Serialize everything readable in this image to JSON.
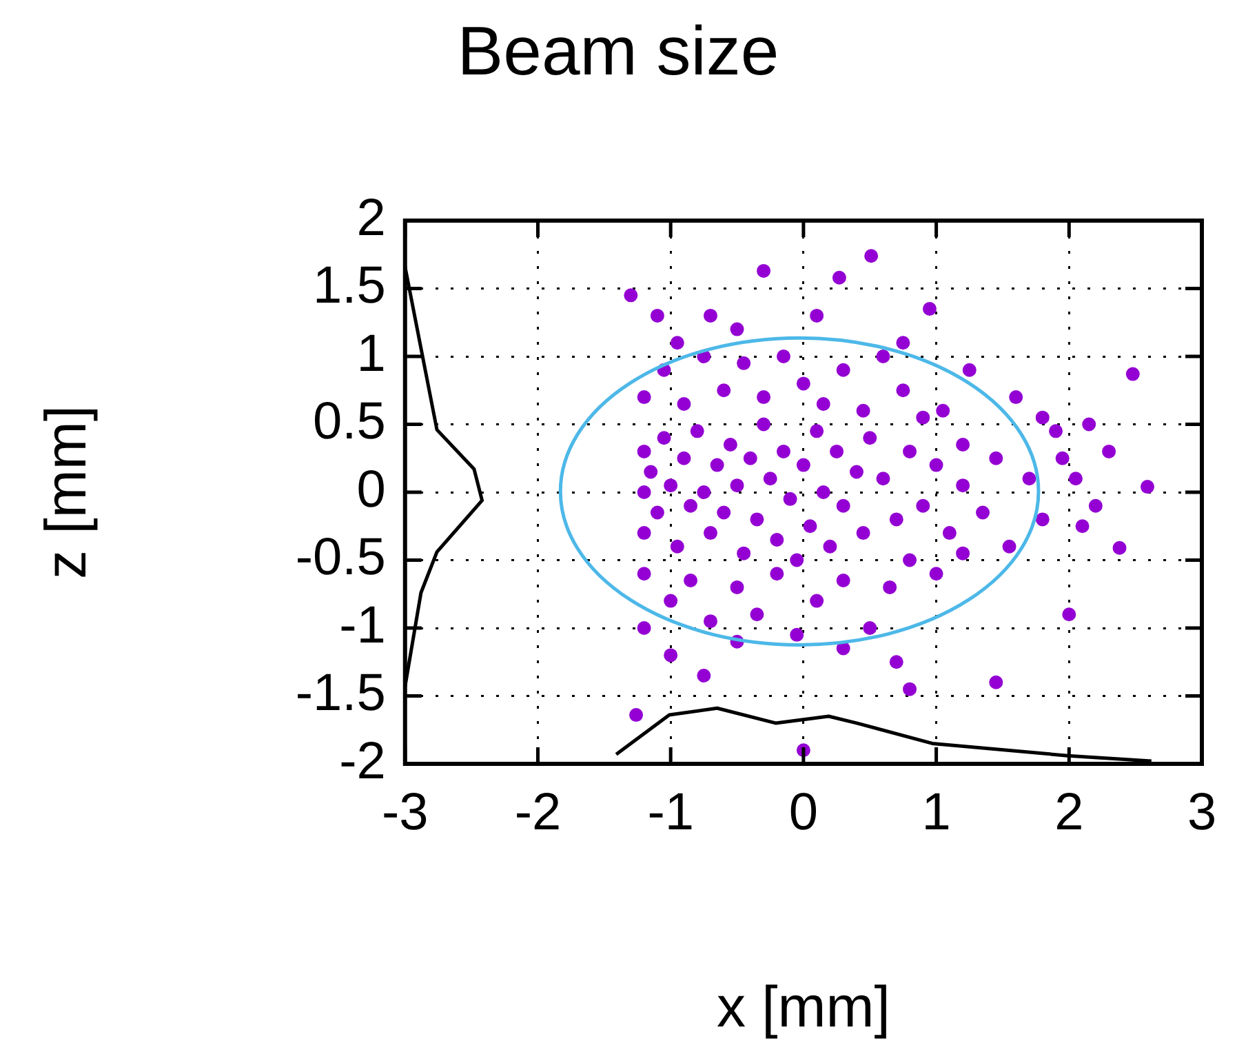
{
  "chart_data": {
    "type": "scatter",
    "title": "Beam size",
    "xlabel": "x [mm]",
    "ylabel": "z [mm]",
    "xlim": [
      -3,
      3
    ],
    "xticks": [
      -3,
      -2,
      -1,
      0,
      1,
      2,
      3
    ],
    "ylim": [
      -2,
      2
    ],
    "yticks": [
      -2,
      -1.5,
      -1,
      -0.5,
      0,
      0.5,
      1,
      1.5,
      2
    ],
    "grid": true,
    "legend": false,
    "series": [
      {
        "type": "scatter",
        "color": "#9400d3",
        "marker": "circle",
        "x": [
          -1.2,
          -1.2,
          -1.2,
          -1.15,
          -1.1,
          -1.05,
          -1,
          -0.95,
          -0.9,
          -0.85,
          -0.8,
          -0.75,
          -0.7,
          -0.65,
          -0.6,
          -0.55,
          -0.5,
          -0.45,
          -0.4,
          -0.35,
          -0.3,
          -0.25,
          -0.2,
          -0.15,
          -0.1,
          -0.05,
          0,
          0.05,
          0.1,
          0.15,
          0.2,
          0.25,
          0.3,
          0.4,
          0.45,
          0.5,
          -1.2,
          -1.05,
          -0.9,
          -0.75,
          -0.6,
          -0.45,
          -0.3,
          -0.15,
          0,
          0.15,
          0.3,
          0.45,
          0.6,
          0.75,
          0.9,
          1.05,
          1.2,
          -1.3,
          -1.1,
          -0.95,
          -0.7,
          -0.3,
          -0.5,
          0.27,
          0.51,
          0.75,
          0.95,
          1.25,
          1.6,
          1.9,
          2.48,
          0.1,
          -1.2,
          -1,
          -0.85,
          -0.7,
          -0.5,
          -0.35,
          -0.2,
          -0.05,
          0.1,
          0.3,
          0.5,
          0.65,
          0.8,
          1,
          1.2,
          -1.2,
          -1,
          -0.75,
          -1.26,
          -0.5,
          0,
          0.3,
          0.7,
          0.8,
          1.45,
          2,
          2.1,
          0.6,
          0.7,
          0.8,
          0.9,
          1,
          1.1,
          1.2,
          1.35,
          1.45,
          1.55,
          1.7,
          1.8,
          1.95,
          2.05,
          2.2,
          2.3,
          2.38,
          2.59,
          2.15,
          1.8
        ],
        "values": [
          0.3,
          0,
          -0.3,
          0.15,
          -0.15,
          0.4,
          0.05,
          -0.4,
          0.25,
          -0.1,
          0.45,
          0,
          -0.3,
          0.2,
          -0.15,
          0.35,
          0.05,
          -0.45,
          0.25,
          -0.2,
          0.5,
          0.1,
          -0.35,
          0.3,
          -0.05,
          -0.5,
          0.2,
          -0.25,
          0.45,
          0,
          -0.4,
          0.3,
          -0.1,
          0.15,
          -0.3,
          0.4,
          0.7,
          0.9,
          0.65,
          1,
          0.75,
          0.95,
          0.7,
          1,
          0.8,
          0.65,
          0.9,
          0.6,
          1,
          0.75,
          0.55,
          0.6,
          0.35,
          1.45,
          1.3,
          1.1,
          1.3,
          1.63,
          1.2,
          1.58,
          1.74,
          1.1,
          1.35,
          0.9,
          0.7,
          0.45,
          0.87,
          1.3,
          -0.6,
          -0.8,
          -0.65,
          -0.95,
          -0.7,
          -0.9,
          -0.6,
          -1.05,
          -0.8,
          -0.65,
          -1,
          -0.7,
          -0.5,
          -0.6,
          -0.45,
          -1,
          -1.2,
          -1.35,
          -1.64,
          -1.1,
          -1.9,
          -1.15,
          -1.25,
          -1.45,
          -1.4,
          -0.9,
          -0.25,
          0.1,
          -0.2,
          0.3,
          -0.1,
          0.2,
          -0.3,
          0.05,
          -0.15,
          0.25,
          -0.4,
          0.1,
          -0.2,
          0.25,
          0.1,
          -0.1,
          0.3,
          -0.41,
          0.04,
          0.5,
          0.55
        ]
      },
      {
        "type": "line",
        "color": "#000000",
        "marker": "none",
        "x": [
          -3,
          -2.76,
          -2.48,
          -2.42,
          -2.76,
          -2.88,
          -3
        ],
        "values": [
          1.66,
          0.46,
          0.17,
          -0.06,
          -0.44,
          -0.74,
          -1.43
        ]
      },
      {
        "type": "line",
        "color": "#000000",
        "marker": "none",
        "x": [
          -1.41,
          -1.01,
          -0.65,
          -0.21,
          0.19,
          0.4,
          0.97,
          1.99,
          2.62
        ],
        "values": [
          -1.93,
          -1.64,
          -1.59,
          -1.7,
          -1.65,
          -1.7,
          -1.85,
          -1.94,
          -1.98
        ]
      }
    ]
  }
}
